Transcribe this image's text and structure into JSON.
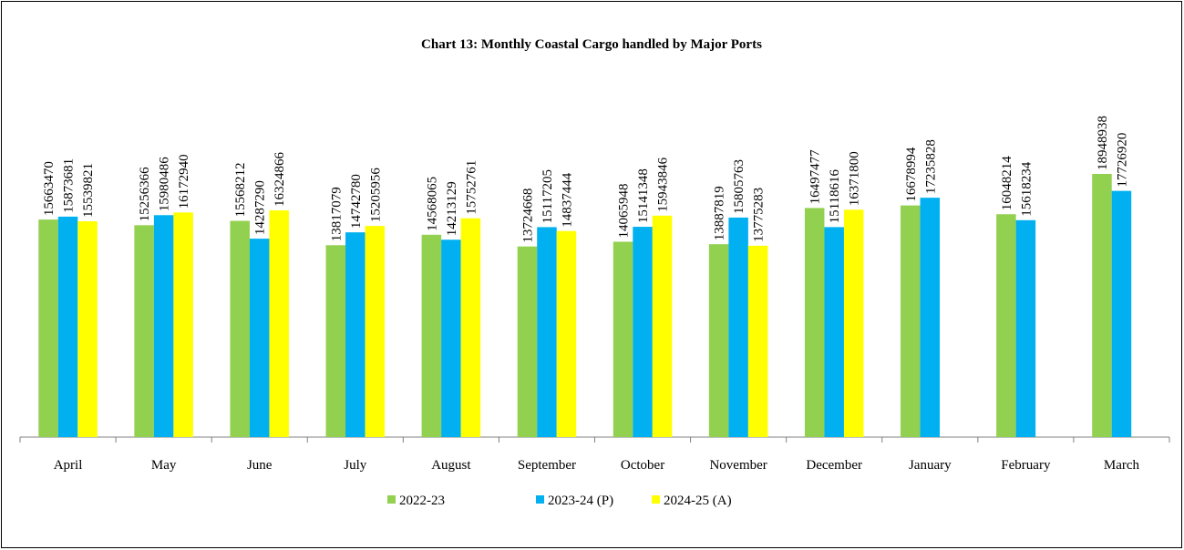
{
  "chart_data": {
    "type": "bar",
    "title": "Chart 13: Monthly Coastal Cargo handled by Major Ports",
    "categories": [
      "April",
      "May",
      "June",
      "July",
      "August",
      "September",
      "October",
      "November",
      "December",
      "January",
      "February",
      "March"
    ],
    "series": [
      {
        "name": "2022-23",
        "color": "#92d050",
        "values": [
          15663470,
          15256366,
          15568212,
          13817079,
          14568065,
          13724668,
          14065948,
          13887819,
          16497477,
          16678994,
          16048214,
          18948938
        ]
      },
      {
        "name": "2023-24 (P)",
        "color": "#00b0f0",
        "values": [
          15873681,
          15980486,
          14287290,
          14742780,
          14213129,
          15117205,
          15141348,
          15805763,
          15118616,
          17235828,
          15618234,
          17726920
        ]
      },
      {
        "name": "2024-25 (A)",
        "color": "#ffff00",
        "values": [
          15539821,
          16172940,
          16324866,
          15205956,
          15752761,
          14837444,
          15943846,
          13775283,
          16371800,
          null,
          null,
          null
        ]
      }
    ],
    "legend": "bottom"
  }
}
